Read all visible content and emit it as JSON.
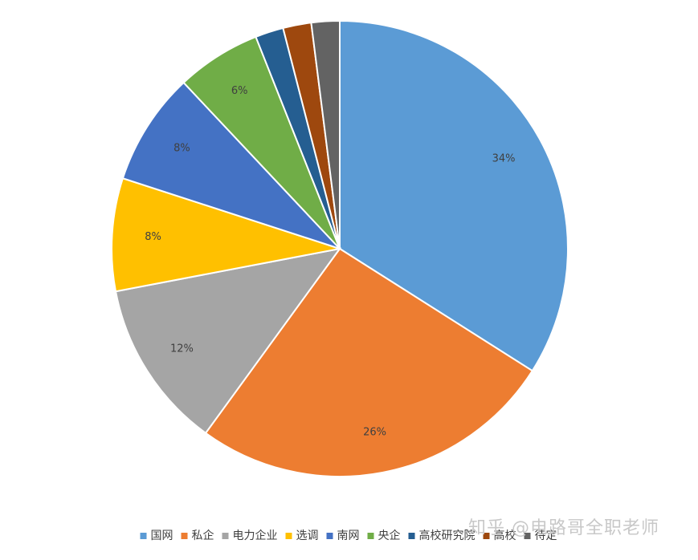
{
  "chart_data": {
    "type": "pie",
    "series": [
      {
        "name": "国网",
        "value": 34,
        "label": "34%",
        "color": "#5B9BD5"
      },
      {
        "name": "私企",
        "value": 26,
        "label": "26%",
        "color": "#ED7D31"
      },
      {
        "name": "电力企业",
        "value": 12,
        "label": "12%",
        "color": "#A5A5A5"
      },
      {
        "name": "选调",
        "value": 8,
        "label": "8%",
        "color": "#FFC000"
      },
      {
        "name": "南网",
        "value": 8,
        "label": "8%",
        "color": "#4472C4"
      },
      {
        "name": "央企",
        "value": 6,
        "label": "6%",
        "color": "#70AD47"
      },
      {
        "name": "高校研究院",
        "value": 2,
        "label": "",
        "color": "#255E91"
      },
      {
        "name": "高校",
        "value": 2,
        "label": "",
        "color": "#9E480E"
      },
      {
        "name": "待定",
        "value": 2,
        "label": "",
        "color": "#636363"
      }
    ],
    "start_angle": "12 o'clock, clockwise",
    "legend_position": "bottom"
  },
  "watermark": "知乎 @电路哥全职老师"
}
